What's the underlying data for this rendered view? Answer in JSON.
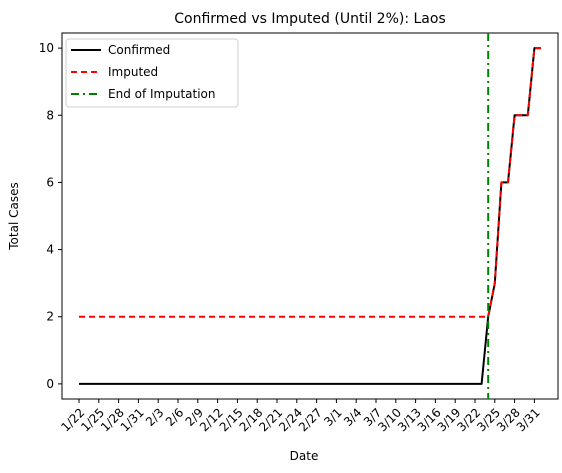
{
  "chart_data": {
    "type": "line",
    "title": "Confirmed vs Imputed (Until 2%): Laos",
    "xlabel": "Date",
    "ylabel": "Total Cases",
    "x": [
      "1/22",
      "1/23",
      "1/24",
      "1/25",
      "1/26",
      "1/27",
      "1/28",
      "1/29",
      "1/30",
      "1/31",
      "2/1",
      "2/2",
      "2/3",
      "2/4",
      "2/5",
      "2/6",
      "2/7",
      "2/8",
      "2/9",
      "2/10",
      "2/11",
      "2/12",
      "2/13",
      "2/14",
      "2/15",
      "2/16",
      "2/17",
      "2/18",
      "2/19",
      "2/20",
      "2/21",
      "2/22",
      "2/23",
      "2/24",
      "2/25",
      "2/26",
      "2/27",
      "2/28",
      "2/29",
      "3/1",
      "3/2",
      "3/3",
      "3/4",
      "3/5",
      "3/6",
      "3/7",
      "3/8",
      "3/9",
      "3/10",
      "3/11",
      "3/12",
      "3/13",
      "3/14",
      "3/15",
      "3/16",
      "3/17",
      "3/18",
      "3/19",
      "3/20",
      "3/21",
      "3/22",
      "3/23",
      "3/24",
      "3/25",
      "3/26",
      "3/27",
      "3/28",
      "3/29",
      "3/30",
      "3/31",
      "4/1"
    ],
    "x_tick_labels": [
      "1/22",
      "1/25",
      "1/28",
      "1/31",
      "2/3",
      "2/6",
      "2/9",
      "2/12",
      "2/15",
      "2/18",
      "2/21",
      "2/24",
      "2/27",
      "3/1",
      "3/4",
      "3/7",
      "3/10",
      "3/13",
      "3/16",
      "3/19",
      "3/22",
      "3/25",
      "3/28",
      "3/31"
    ],
    "ylim": [
      -0.45,
      10.45
    ],
    "y_ticks": [
      0,
      2,
      4,
      6,
      8,
      10
    ],
    "series": [
      {
        "name": "Confirmed",
        "color": "#000000",
        "style": "solid",
        "values": [
          0,
          0,
          0,
          0,
          0,
          0,
          0,
          0,
          0,
          0,
          0,
          0,
          0,
          0,
          0,
          0,
          0,
          0,
          0,
          0,
          0,
          0,
          0,
          0,
          0,
          0,
          0,
          0,
          0,
          0,
          0,
          0,
          0,
          0,
          0,
          0,
          0,
          0,
          0,
          0,
          0,
          0,
          0,
          0,
          0,
          0,
          0,
          0,
          0,
          0,
          0,
          0,
          0,
          0,
          0,
          0,
          0,
          0,
          0,
          0,
          0,
          0,
          2,
          3,
          6,
          6,
          8,
          8,
          8,
          10,
          10
        ]
      },
      {
        "name": "Imputed",
        "color": "#ff0000",
        "style": "dashed",
        "values": [
          2,
          2,
          2,
          2,
          2,
          2,
          2,
          2,
          2,
          2,
          2,
          2,
          2,
          2,
          2,
          2,
          2,
          2,
          2,
          2,
          2,
          2,
          2,
          2,
          2,
          2,
          2,
          2,
          2,
          2,
          2,
          2,
          2,
          2,
          2,
          2,
          2,
          2,
          2,
          2,
          2,
          2,
          2,
          2,
          2,
          2,
          2,
          2,
          2,
          2,
          2,
          2,
          2,
          2,
          2,
          2,
          2,
          2,
          2,
          2,
          2,
          2,
          2,
          3,
          6,
          6,
          8,
          8,
          8,
          10,
          10
        ]
      }
    ],
    "vlines": [
      {
        "name": "End of Imputation",
        "x": "3/24",
        "color": "#008000",
        "style": "dashdot"
      }
    ],
    "legend": {
      "position": "top-left",
      "entries": [
        "Confirmed",
        "Imputed",
        "End of Imputation"
      ]
    },
    "grid": false
  }
}
